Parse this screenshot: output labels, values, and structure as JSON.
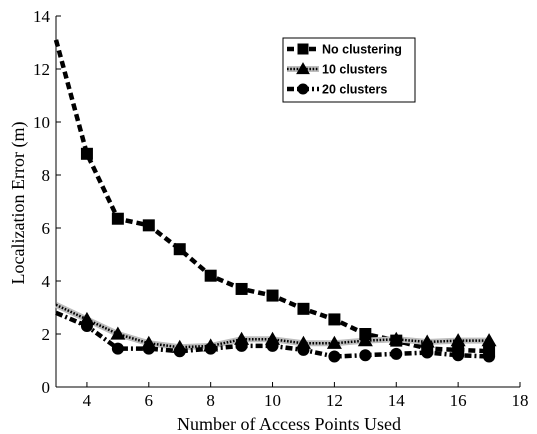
{
  "chart_data": {
    "type": "line",
    "xlabel": "Number of Access Points Used",
    "ylabel": "Localization Error (m)",
    "xlim": [
      3,
      18
    ],
    "ylim": [
      0,
      14
    ],
    "xticks": [
      4,
      6,
      8,
      10,
      12,
      14,
      16,
      18
    ],
    "yticks": [
      0,
      2,
      4,
      6,
      8,
      10,
      12,
      14
    ],
    "grid": false,
    "legend_position": "top-right",
    "series": [
      {
        "name": "No clustering",
        "marker": "square",
        "line_style": "dashed",
        "color": "#000000",
        "x": [
          3,
          4,
          5,
          6,
          7,
          8,
          9,
          10,
          11,
          12,
          13,
          14,
          15,
          16,
          17
        ],
        "y": [
          13.1,
          8.8,
          6.35,
          6.1,
          5.2,
          4.2,
          3.7,
          3.45,
          2.95,
          2.55,
          2.0,
          1.75,
          1.45,
          1.4,
          1.35
        ]
      },
      {
        "name": "10 clusters",
        "marker": "triangle",
        "line_style": "dotted",
        "color": "#000000",
        "x": [
          3,
          4,
          5,
          6,
          7,
          8,
          9,
          10,
          11,
          12,
          13,
          14,
          15,
          16,
          17
        ],
        "y": [
          3.1,
          2.55,
          2.0,
          1.65,
          1.5,
          1.55,
          1.8,
          1.8,
          1.65,
          1.65,
          1.75,
          1.8,
          1.7,
          1.75,
          1.75
        ]
      },
      {
        "name": "20 clusters",
        "marker": "circle",
        "line_style": "dash-dot",
        "color": "#000000",
        "x": [
          3,
          4,
          5,
          6,
          7,
          8,
          9,
          10,
          11,
          12,
          13,
          14,
          15,
          16,
          17
        ],
        "y": [
          2.8,
          2.3,
          1.45,
          1.45,
          1.35,
          1.45,
          1.55,
          1.55,
          1.4,
          1.15,
          1.2,
          1.25,
          1.3,
          1.2,
          1.15
        ]
      }
    ]
  }
}
